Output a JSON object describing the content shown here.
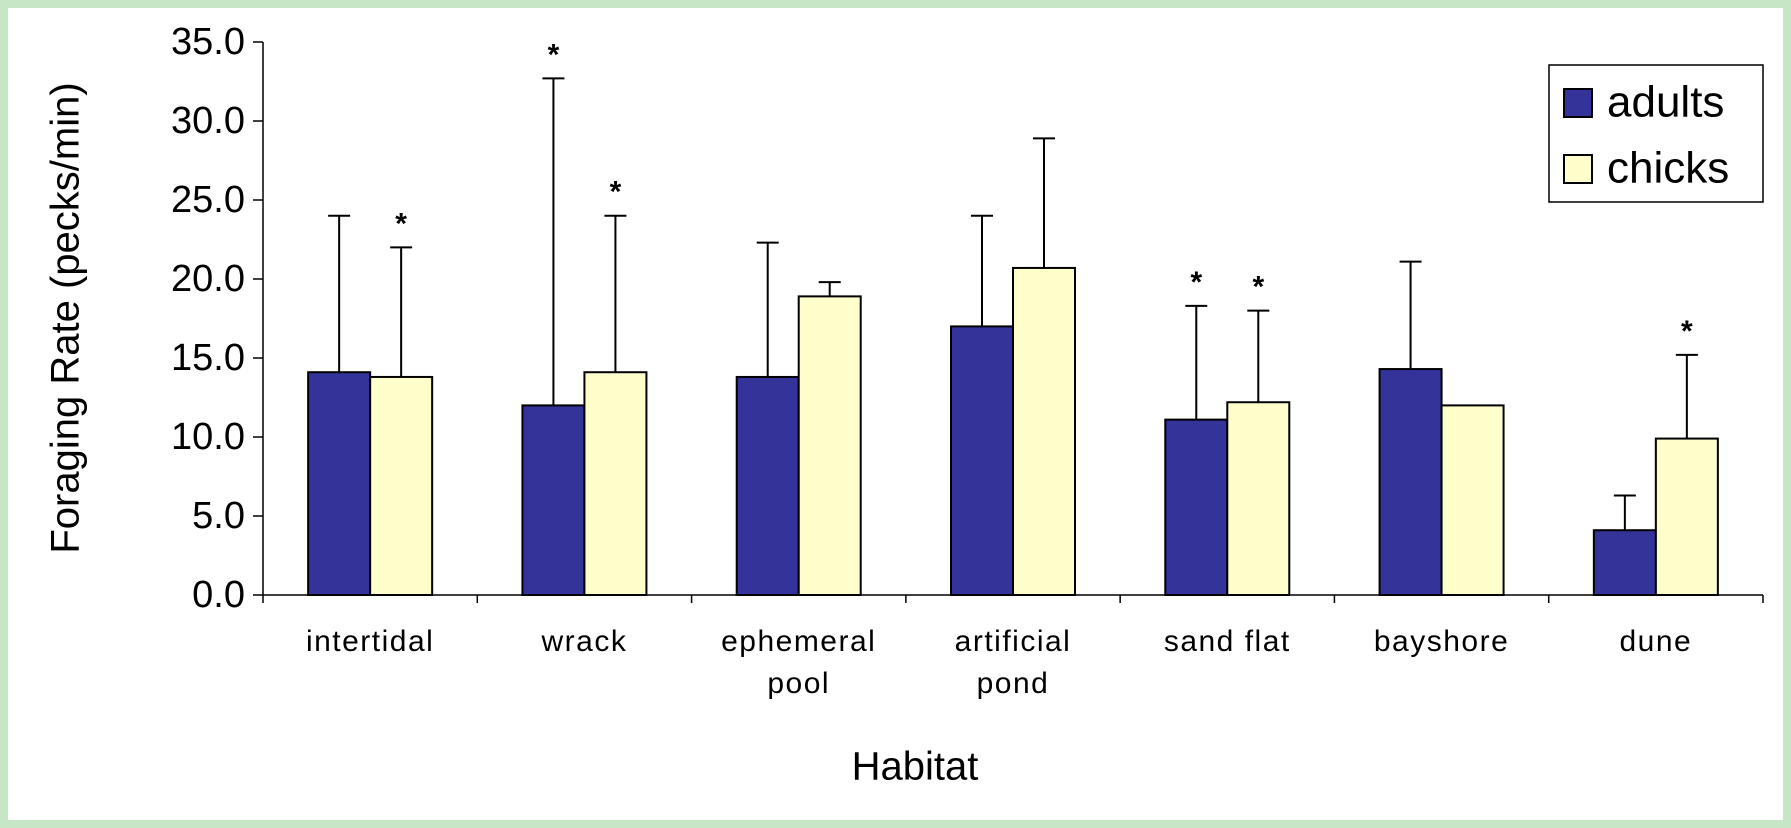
{
  "chart_data": {
    "type": "bar",
    "xlabel": "Habitat",
    "ylabel": "Foraging Rate (pecks/min)",
    "categories": [
      "intertidal",
      "wrack",
      "ephemeral\npool",
      "artificial\npond",
      "sand flat",
      "bayshore",
      "dune"
    ],
    "series": [
      {
        "name": "adults",
        "color": "#333399",
        "values": [
          14.1,
          12.0,
          13.8,
          17.0,
          11.1,
          14.3,
          4.1
        ],
        "errors": [
          9.9,
          20.7,
          8.5,
          7.0,
          7.2,
          6.8,
          2.2
        ]
      },
      {
        "name": "chicks",
        "color": "#ffffcc",
        "values": [
          13.8,
          14.1,
          18.9,
          20.7,
          12.2,
          12.0,
          9.9
        ],
        "errors": [
          8.2,
          9.9,
          0.9,
          8.2,
          5.8,
          0.0,
          5.3
        ]
      }
    ],
    "annotations": [
      {
        "series": 0,
        "index": 1,
        "text": "*"
      },
      {
        "series": 0,
        "index": 4,
        "text": "*"
      },
      {
        "series": 1,
        "index": 0,
        "text": "*"
      },
      {
        "series": 1,
        "index": 1,
        "text": "*"
      },
      {
        "series": 1,
        "index": 4,
        "text": "*"
      },
      {
        "series": 1,
        "index": 6,
        "text": "*"
      }
    ],
    "ylim": [
      0,
      35
    ],
    "yticks": [
      {
        "value": 0,
        "label": "0.0"
      },
      {
        "value": 5,
        "label": "5.0"
      },
      {
        "value": 10,
        "label": "10.0"
      },
      {
        "value": 15,
        "label": "15.0"
      },
      {
        "value": 20,
        "label": "20.0"
      },
      {
        "value": 25,
        "label": "25.0"
      },
      {
        "value": 30,
        "label": "30.0"
      },
      {
        "value": 35,
        "label": "35.0"
      }
    ],
    "legend": "upper right"
  }
}
